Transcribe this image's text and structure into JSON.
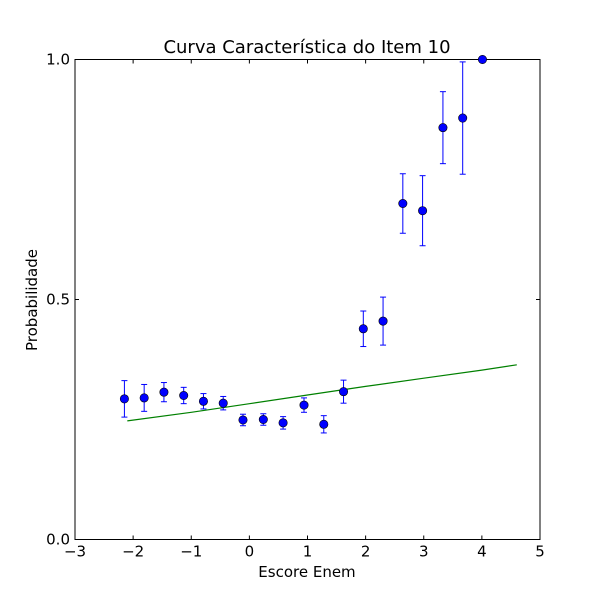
{
  "chart_data": {
    "type": "scatter",
    "title": "Curva Característica do Item 10",
    "xlabel": "Escore Enem",
    "ylabel": "Probabilidade",
    "xlim": [
      -3,
      5
    ],
    "ylim": [
      0,
      1
    ],
    "x_ticks": [
      -3,
      -2,
      -1,
      0,
      1,
      2,
      3,
      4,
      5
    ],
    "x_tick_labels": [
      "−3",
      "−2",
      "−1",
      "0",
      "1",
      "2",
      "3",
      "4",
      "5"
    ],
    "y_ticks": [
      0,
      0.5,
      1
    ],
    "y_tick_labels": [
      "0.0",
      "0.5",
      "1.0"
    ],
    "grid": false,
    "series": [
      {
        "kind": "errorbar-points",
        "color": "#0000ff",
        "points": [
          {
            "x": -2.15,
            "y": 0.293,
            "err": 0.038
          },
          {
            "x": -1.81,
            "y": 0.295,
            "err": 0.028
          },
          {
            "x": -1.47,
            "y": 0.307,
            "err": 0.02
          },
          {
            "x": -1.13,
            "y": 0.3,
            "err": 0.017
          },
          {
            "x": -0.79,
            "y": 0.288,
            "err": 0.016
          },
          {
            "x": -0.45,
            "y": 0.284,
            "err": 0.014
          },
          {
            "x": -0.11,
            "y": 0.249,
            "err": 0.012
          },
          {
            "x": 0.24,
            "y": 0.25,
            "err": 0.012
          },
          {
            "x": 0.58,
            "y": 0.243,
            "err": 0.013
          },
          {
            "x": 0.94,
            "y": 0.28,
            "err": 0.015
          },
          {
            "x": 1.28,
            "y": 0.24,
            "err": 0.018
          },
          {
            "x": 1.62,
            "y": 0.308,
            "err": 0.024
          },
          {
            "x": 1.96,
            "y": 0.439,
            "err": 0.037
          },
          {
            "x": 2.3,
            "y": 0.455,
            "err": 0.05
          },
          {
            "x": 2.64,
            "y": 0.7,
            "err": 0.062
          },
          {
            "x": 2.98,
            "y": 0.685,
            "err": 0.073
          },
          {
            "x": 3.33,
            "y": 0.858,
            "err": 0.075
          },
          {
            "x": 3.67,
            "y": 0.878,
            "err": 0.117
          },
          {
            "x": 4.01,
            "y": 1.0,
            "err": 0
          }
        ]
      },
      {
        "kind": "line",
        "color": "#008000",
        "x": [
          -2.1,
          -1.0,
          0.0,
          1.0,
          2.0,
          3.0,
          4.0,
          4.6
        ],
        "y": [
          0.247,
          0.265,
          0.283,
          0.301,
          0.319,
          0.336,
          0.353,
          0.364
        ]
      }
    ]
  }
}
